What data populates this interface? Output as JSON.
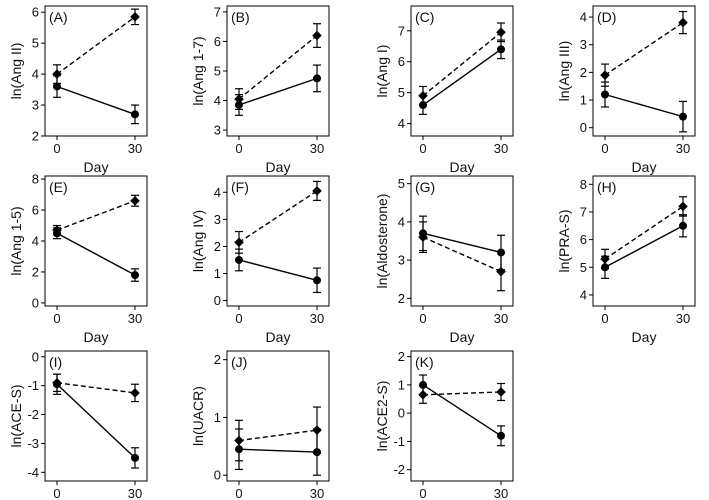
{
  "figure": {
    "panels_per_row": 4,
    "styles": {
      "ink": "#000000",
      "series": [
        {
          "name": "solid",
          "dash": "none",
          "marker": "circle"
        },
        {
          "name": "dashed",
          "dash": "dashed",
          "marker": "diamond"
        }
      ]
    }
  },
  "chart_data": [
    {
      "type": "line",
      "label": "(A)",
      "ylabel": "ln(Ang II)",
      "xlabel": "Day",
      "x": [
        0,
        30
      ],
      "ylim": [
        2,
        6.2
      ],
      "yticks": [
        2,
        3,
        4,
        5,
        6
      ],
      "series": [
        {
          "name": "solid",
          "values": [
            3.6,
            2.7
          ],
          "err": [
            0.35,
            0.3
          ]
        },
        {
          "name": "dashed",
          "values": [
            4.0,
            5.85
          ],
          "err": [
            0.3,
            0.25
          ]
        }
      ]
    },
    {
      "type": "line",
      "label": "(B)",
      "ylabel": "ln(Ang 1-7)",
      "xlabel": "Day",
      "x": [
        0,
        30
      ],
      "ylim": [
        2.8,
        7.2
      ],
      "yticks": [
        3,
        4,
        5,
        6,
        7
      ],
      "series": [
        {
          "name": "solid",
          "values": [
            3.85,
            4.75
          ],
          "err": [
            0.35,
            0.45
          ]
        },
        {
          "name": "dashed",
          "values": [
            4.05,
            6.2
          ],
          "err": [
            0.35,
            0.4
          ]
        }
      ]
    },
    {
      "type": "line",
      "label": "(C)",
      "ylabel": "ln(Ang I)",
      "xlabel": "Day",
      "x": [
        0,
        30
      ],
      "ylim": [
        3.6,
        7.8
      ],
      "yticks": [
        4,
        5,
        6,
        7
      ],
      "series": [
        {
          "name": "solid",
          "values": [
            4.6,
            6.4
          ],
          "err": [
            0.3,
            0.3
          ]
        },
        {
          "name": "dashed",
          "values": [
            4.9,
            6.95
          ],
          "err": [
            0.3,
            0.3
          ]
        }
      ]
    },
    {
      "type": "line",
      "label": "(D)",
      "ylabel": "ln(Ang III)",
      "xlabel": "Day",
      "x": [
        0,
        30
      ],
      "ylim": [
        -0.3,
        4.4
      ],
      "yticks": [
        0,
        1,
        2,
        3,
        4
      ],
      "series": [
        {
          "name": "solid",
          "values": [
            1.2,
            0.4
          ],
          "err": [
            0.45,
            0.55
          ]
        },
        {
          "name": "dashed",
          "values": [
            1.9,
            3.8
          ],
          "err": [
            0.4,
            0.4
          ]
        }
      ]
    },
    {
      "type": "line",
      "label": "(E)",
      "ylabel": "ln(Ang 1-5)",
      "xlabel": "Day",
      "x": [
        0,
        30
      ],
      "ylim": [
        -0.2,
        8.2
      ],
      "yticks": [
        0,
        2,
        4,
        6,
        8
      ],
      "series": [
        {
          "name": "solid",
          "values": [
            4.5,
            1.8
          ],
          "err": [
            0.35,
            0.4
          ]
        },
        {
          "name": "dashed",
          "values": [
            4.7,
            6.6
          ],
          "err": [
            0.3,
            0.35
          ]
        }
      ]
    },
    {
      "type": "line",
      "label": "(F)",
      "ylabel": "ln(Ang IV)",
      "xlabel": "Day",
      "x": [
        0,
        30
      ],
      "ylim": [
        -0.2,
        4.6
      ],
      "yticks": [
        0,
        1,
        2,
        3,
        4
      ],
      "series": [
        {
          "name": "solid",
          "values": [
            1.5,
            0.75
          ],
          "err": [
            0.4,
            0.45
          ]
        },
        {
          "name": "dashed",
          "values": [
            2.15,
            4.05
          ],
          "err": [
            0.4,
            0.35
          ]
        }
      ]
    },
    {
      "type": "line",
      "label": "(G)",
      "ylabel": "ln(Aldosterone)",
      "xlabel": "Day",
      "x": [
        0,
        30
      ],
      "ylim": [
        1.8,
        5.2
      ],
      "yticks": [
        2,
        3,
        4,
        5
      ],
      "series": [
        {
          "name": "solid",
          "values": [
            3.7,
            3.2
          ],
          "err": [
            0.45,
            0.45
          ]
        },
        {
          "name": "dashed",
          "values": [
            3.6,
            2.7
          ],
          "err": [
            0.4,
            0.5
          ]
        }
      ]
    },
    {
      "type": "line",
      "label": "(H)",
      "ylabel": "ln(PRA-S)",
      "xlabel": "Day",
      "x": [
        0,
        30
      ],
      "ylim": [
        3.6,
        8.3
      ],
      "yticks": [
        4,
        5,
        6,
        7,
        8
      ],
      "series": [
        {
          "name": "solid",
          "values": [
            5.0,
            6.5
          ],
          "err": [
            0.4,
            0.4
          ]
        },
        {
          "name": "dashed",
          "values": [
            5.3,
            7.2
          ],
          "err": [
            0.35,
            0.35
          ]
        }
      ]
    },
    {
      "type": "line",
      "label": "(I)",
      "ylabel": "ln(ACE-S)",
      "xlabel": "Day",
      "x": [
        0,
        30
      ],
      "ylim": [
        -4.3,
        0.2
      ],
      "yticks": [
        -4,
        -3,
        -2,
        -1,
        0
      ],
      "series": [
        {
          "name": "solid",
          "values": [
            -0.95,
            -3.5
          ],
          "err": [
            0.35,
            0.35
          ]
        },
        {
          "name": "dashed",
          "values": [
            -0.9,
            -1.25
          ],
          "err": [
            0.3,
            0.3
          ]
        }
      ]
    },
    {
      "type": "line",
      "label": "(J)",
      "ylabel": "ln(UACR)",
      "xlabel": "Day",
      "x": [
        0,
        30
      ],
      "ylim": [
        -0.1,
        2.15
      ],
      "yticks": [
        0,
        1,
        2
      ],
      "series": [
        {
          "name": "solid",
          "values": [
            0.45,
            0.4
          ],
          "err": [
            0.35,
            0.4
          ]
        },
        {
          "name": "dashed",
          "values": [
            0.6,
            0.78
          ],
          "err": [
            0.35,
            0.4
          ]
        }
      ]
    },
    {
      "type": "line",
      "label": "(K)",
      "ylabel": "ln(ACE2-S)",
      "xlabel": "Day",
      "x": [
        0,
        30
      ],
      "ylim": [
        -2.4,
        2.2
      ],
      "yticks": [
        -2,
        -1,
        0,
        1,
        2
      ],
      "series": [
        {
          "name": "solid",
          "values": [
            1.0,
            -0.8
          ],
          "err": [
            0.35,
            0.35
          ]
        },
        {
          "name": "dashed",
          "values": [
            0.65,
            0.75
          ],
          "err": [
            0.3,
            0.3
          ]
        }
      ]
    }
  ]
}
